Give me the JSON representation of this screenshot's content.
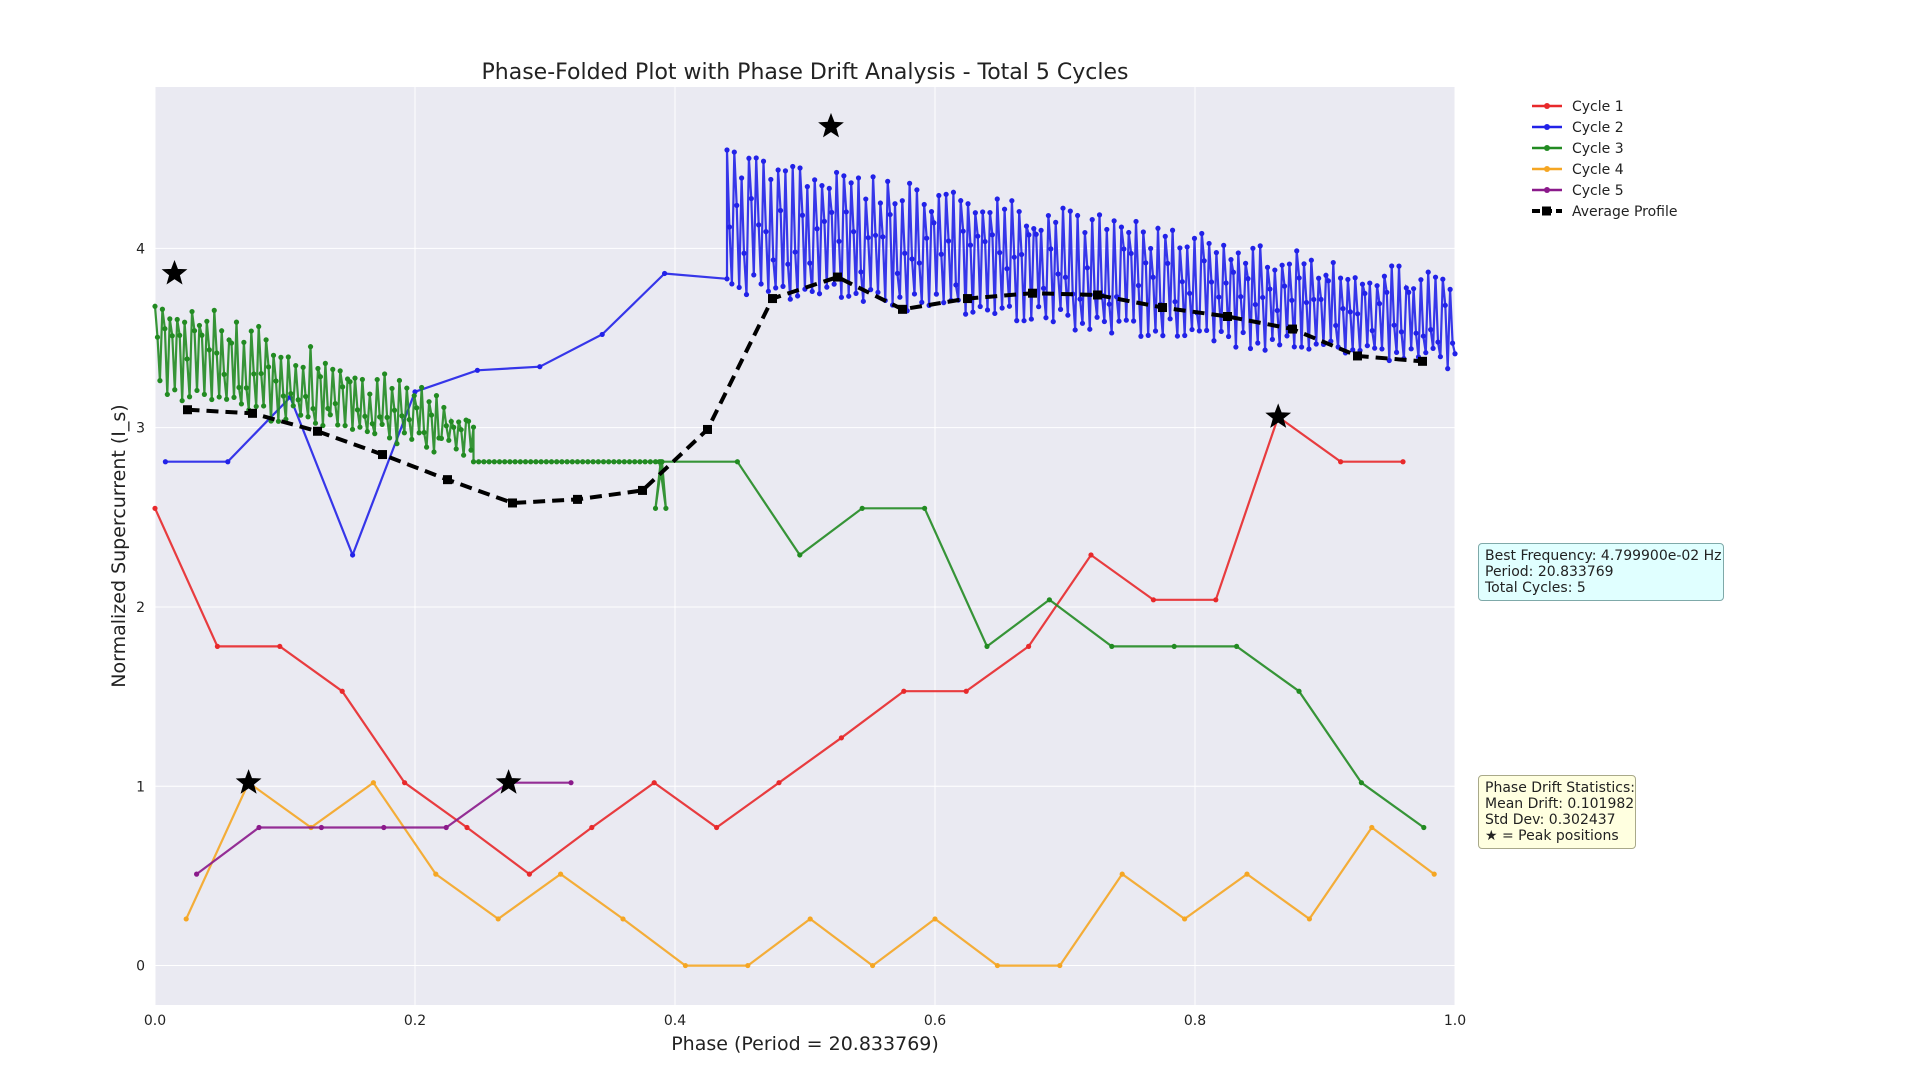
{
  "chart_data": {
    "type": "line",
    "title": "Phase-Folded Plot with Phase Drift Analysis - Total 5 Cycles",
    "xlabel": "Phase (Period = 20.833769)",
    "ylabel": "Normalized Supercurrent (I_s)",
    "xlim": [
      0,
      1.0
    ],
    "ylim": [
      -0.22,
      4.9
    ],
    "xticks": [
      0.0,
      0.2,
      0.4,
      0.6,
      0.8,
      1.0
    ],
    "xtick_labels": [
      "0.0",
      "0.2",
      "0.4",
      "0.6",
      "0.8",
      "1.0"
    ],
    "yticks": [
      0,
      1,
      2,
      3,
      4
    ],
    "ytick_labels": [
      "0",
      "1",
      "2",
      "3",
      "4"
    ],
    "grid": true,
    "legend_position": "top-right outside",
    "series": [
      {
        "name": "Cycle 1",
        "color": "#e8292b",
        "x": [
          0.0,
          0.048,
          0.096,
          0.144,
          0.192,
          0.24,
          0.288,
          0.336,
          0.384,
          0.432,
          0.48,
          0.528,
          0.576,
          0.624,
          0.672,
          0.72,
          0.768,
          0.816,
          0.864,
          0.912,
          0.96
        ],
        "y": [
          2.55,
          1.78,
          1.78,
          1.53,
          1.02,
          0.77,
          0.51,
          0.77,
          1.02,
          0.77,
          1.02,
          1.27,
          1.53,
          1.53,
          1.78,
          2.29,
          2.04,
          2.04,
          3.06,
          2.81,
          2.81
        ]
      },
      {
        "name": "Cycle 2",
        "color": "#2222e8",
        "x": [
          0.008,
          0.056,
          0.104,
          0.152,
          0.2,
          0.248,
          0.296,
          0.344,
          0.392,
          0.44
        ],
        "y": [
          2.81,
          2.81,
          3.17,
          2.29,
          3.2,
          3.32,
          3.34,
          3.52,
          3.86,
          3.83
        ],
        "dense": {
          "x_start": 0.44,
          "x_end": 1.0,
          "n": 300,
          "high_start": 4.55,
          "high_end": 3.85,
          "low_start": 3.75,
          "low_end": 3.32
        }
      },
      {
        "name": "Cycle 3",
        "color": "#228b22",
        "x": [
          0.388,
          0.448,
          0.496,
          0.544,
          0.592,
          0.64,
          0.688,
          0.736,
          0.784,
          0.832,
          0.88,
          0.928,
          0.976
        ],
        "y": [
          2.81,
          2.81,
          2.29,
          2.55,
          2.55,
          1.78,
          2.04,
          1.78,
          1.78,
          1.78,
          1.53,
          1.02,
          0.77
        ],
        "dense": {
          "x_start": 0.0,
          "x_end": 0.245,
          "n": 130,
          "high_start": 3.78,
          "high_end": 3.12,
          "low_start": 3.15,
          "low_end": 2.81,
          "flat_until": 0.39,
          "flat_value": 2.81
        }
      },
      {
        "name": "Cycle 4",
        "color": "#f5a623",
        "x": [
          0.024,
          0.072,
          0.12,
          0.168,
          0.216,
          0.264,
          0.312,
          0.36,
          0.408,
          0.456,
          0.504,
          0.552,
          0.6,
          0.648,
          0.696,
          0.744,
          0.792,
          0.84,
          0.888,
          0.936,
          0.984
        ],
        "y": [
          0.26,
          1.02,
          0.77,
          1.02,
          0.51,
          0.26,
          0.51,
          0.26,
          0.0,
          0.0,
          0.26,
          0.0,
          0.26,
          0.0,
          0.0,
          0.51,
          0.26,
          0.51,
          0.26,
          0.77,
          0.51
        ]
      },
      {
        "name": "Cycle 5",
        "color": "#8b1a8b",
        "x": [
          0.032,
          0.08,
          0.128,
          0.176,
          0.224,
          0.272,
          0.32
        ],
        "y": [
          0.51,
          0.77,
          0.77,
          0.77,
          0.77,
          1.02,
          1.02
        ]
      },
      {
        "name": "Average Profile",
        "color": "#000000",
        "style": "dashed",
        "x": [
          0.025,
          0.075,
          0.125,
          0.175,
          0.225,
          0.275,
          0.325,
          0.375,
          0.425,
          0.475,
          0.525,
          0.575,
          0.625,
          0.675,
          0.725,
          0.775,
          0.825,
          0.875,
          0.925,
          0.975
        ],
        "y": [
          3.1,
          3.08,
          2.98,
          2.85,
          2.71,
          2.58,
          2.6,
          2.65,
          2.99,
          3.72,
          3.84,
          3.66,
          3.72,
          3.75,
          3.74,
          3.67,
          3.62,
          3.55,
          3.4,
          3.37
        ]
      }
    ],
    "peaks": [
      {
        "x": 0.015,
        "y": 3.86
      },
      {
        "x": 0.52,
        "y": 4.68
      },
      {
        "x": 0.864,
        "y": 3.06
      },
      {
        "x": 0.072,
        "y": 1.02
      },
      {
        "x": 0.272,
        "y": 1.02
      }
    ]
  },
  "info_box": {
    "line1": "Best Frequency: 4.799900e-02 Hz",
    "line2": "Period: 20.833769",
    "line3": "Total Cycles: 5"
  },
  "drift_box": {
    "line1": "Phase Drift Statistics:",
    "line2": "Mean Drift: 0.101982",
    "line3": "Std Dev: 0.302437",
    "line4": "★ = Peak positions"
  }
}
